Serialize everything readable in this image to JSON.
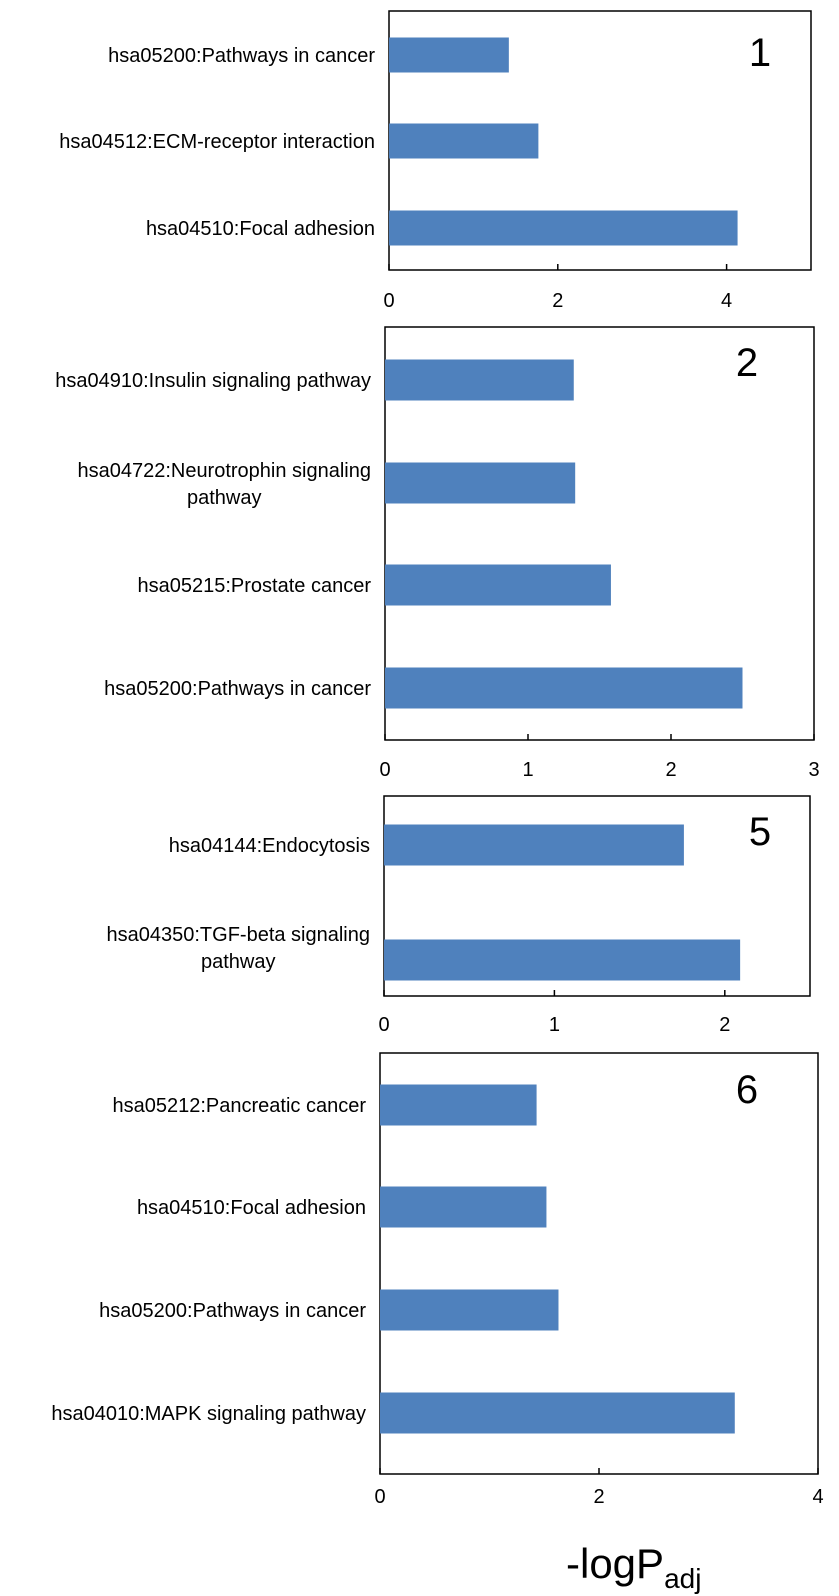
{
  "colors": {
    "bar": "#4f81bd",
    "axis": "#000000"
  },
  "xlabel": {
    "main": "-logP",
    "sub": "adj"
  },
  "chart_data": [
    {
      "type": "bar",
      "orientation": "horizontal",
      "panel_label": "1",
      "categories": [
        "hsa05200:Pathways in cancer",
        "hsa04512:ECM-receptor interaction",
        "hsa04510:Focal adhesion"
      ],
      "values": [
        1.42,
        1.77,
        4.13
      ],
      "xlim": [
        0,
        5
      ],
      "xticks": [
        "0",
        "2",
        "4"
      ],
      "grid": false
    },
    {
      "type": "bar",
      "orientation": "horizontal",
      "panel_label": "2",
      "categories": [
        "hsa04910:Insulin signaling pathway",
        "hsa04722:Neurotrophin signaling pathway",
        "hsa05215:Prostate cancer",
        "hsa05200:Pathways in cancer"
      ],
      "values": [
        1.32,
        1.33,
        1.58,
        2.5
      ],
      "xlim": [
        0,
        3
      ],
      "xticks": [
        "0",
        "1",
        "2",
        "3"
      ],
      "grid": false
    },
    {
      "type": "bar",
      "orientation": "horizontal",
      "panel_label": "5",
      "categories": [
        "hsa04144:Endocytosis",
        "hsa04350:TGF-beta signaling pathway"
      ],
      "values": [
        1.76,
        2.09
      ],
      "xlim": [
        0,
        2.5
      ],
      "xticks": [
        "0",
        "1",
        "2"
      ],
      "grid": false
    },
    {
      "type": "bar",
      "orientation": "horizontal",
      "panel_label": "6",
      "categories": [
        "hsa05212:Pancreatic cancer",
        "hsa04510:Focal adhesion",
        "hsa05200:Pathways in cancer",
        "hsa04010:MAPK signaling pathway"
      ],
      "values": [
        1.43,
        1.52,
        1.63,
        3.24
      ],
      "xlim": [
        0,
        4
      ],
      "xticks": [
        "0",
        "2",
        "4"
      ],
      "grid": false
    }
  ]
}
